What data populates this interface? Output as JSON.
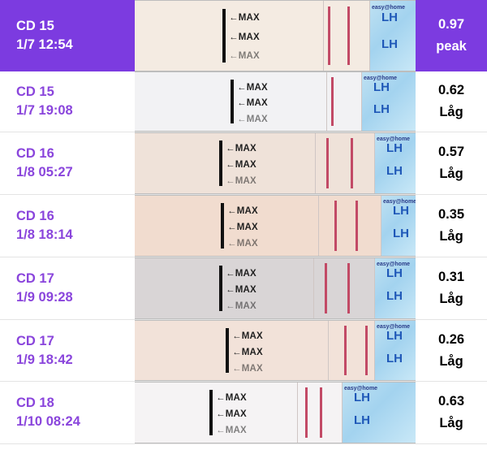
{
  "arrow_text": "←MAX",
  "rows": [
    {
      "cd": "CD 15",
      "datetime": "1/7 12:54",
      "value": "0.97",
      "level": "peak",
      "highlight": true,
      "strip_color": "#f4ebe2",
      "lh_text": "LH",
      "brand_text": "easy@home"
    },
    {
      "cd": "CD 15",
      "datetime": "1/7 19:08",
      "value": "0.62",
      "level": "Låg",
      "highlight": false,
      "strip_color": "#f2f2f4",
      "lh_text": "LH",
      "brand_text": "easy@home"
    },
    {
      "cd": "CD 16",
      "datetime": "1/8 05:27",
      "value": "0.57",
      "level": "Låg",
      "highlight": false,
      "strip_color": "#efe2d9",
      "lh_text": "LH",
      "brand_text": "easy@home"
    },
    {
      "cd": "CD 16",
      "datetime": "1/8 18:14",
      "value": "0.35",
      "level": "Låg",
      "highlight": false,
      "strip_color": "#f1dccf",
      "lh_text": "LH",
      "brand_text": "easy@home"
    },
    {
      "cd": "CD 17",
      "datetime": "1/9 09:28",
      "value": "0.31",
      "level": "Låg",
      "highlight": false,
      "strip_color": "#d9d5d6",
      "lh_text": "LH",
      "brand_text": "easy@home"
    },
    {
      "cd": "CD 17",
      "datetime": "1/9 18:42",
      "value": "0.26",
      "level": "Låg",
      "highlight": false,
      "strip_color": "#f2e2d9",
      "lh_text": "LH",
      "brand_text": "easy@home"
    },
    {
      "cd": "CD 18",
      "datetime": "1/10 08:24",
      "value": "0.63",
      "level": "Låg",
      "highlight": false,
      "strip_color": "#f5f3f4",
      "lh_text": "LH",
      "brand_text": "easy@home"
    }
  ]
}
